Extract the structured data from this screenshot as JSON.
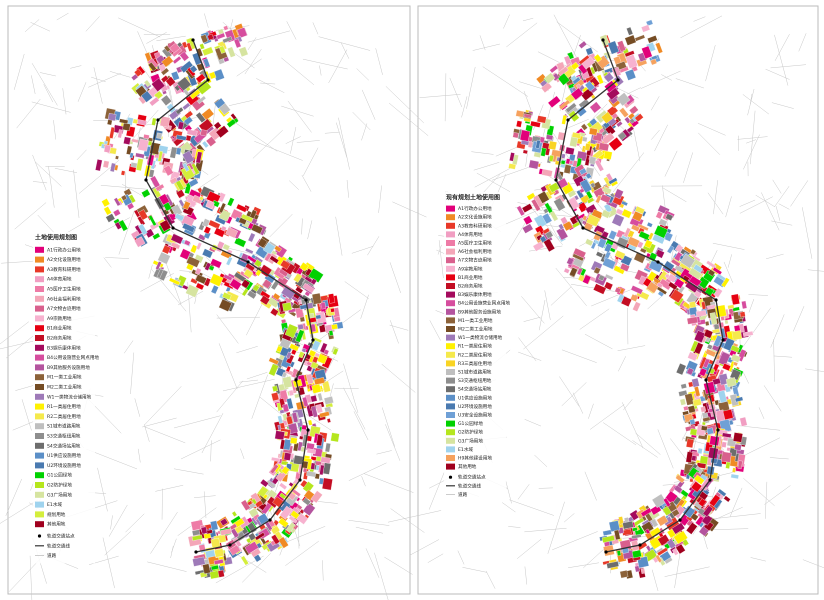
{
  "maps": [
    {
      "legend": {
        "title": "土地使用规划图",
        "items": [
          {
            "label": "A1行政办公用地",
            "color": "#e2007a"
          },
          {
            "label": "A2文化设施用地",
            "color": "#f08a24"
          },
          {
            "label": "A3教育科研用地",
            "color": "#e83828"
          },
          {
            "label": "A4体育用地",
            "color": "#f19ec2"
          },
          {
            "label": "A5医疗卫生用地",
            "color": "#ee7ba6"
          },
          {
            "label": "A6社会福利用地",
            "color": "#f4a6b8"
          },
          {
            "label": "A7文物古迹用地",
            "color": "#d9608d"
          },
          {
            "label": "A9宗教用地",
            "color": "#f7b2cf"
          },
          {
            "label": "B1商业用地",
            "color": "#e60012"
          },
          {
            "label": "B2商务用地",
            "color": "#c30d23"
          },
          {
            "label": "B3娱乐康体用地",
            "color": "#a40b5d"
          },
          {
            "label": "B4公用设施营业网点用地",
            "color": "#d64d9e"
          },
          {
            "label": "B9其他服务设施用地",
            "color": "#b4549e"
          },
          {
            "label": "M1一类工业用地",
            "color": "#8c6239"
          },
          {
            "label": "M2二类工业用地",
            "color": "#754c24"
          },
          {
            "label": "W1一类物流仓储用地",
            "color": "#9e7ab8"
          },
          {
            "label": "R1一类居住用地",
            "color": "#fff100"
          },
          {
            "label": "R2二类居住用地",
            "color": "#f5e94c"
          },
          {
            "label": "S1城市道路用地",
            "color": "#bfbfbf"
          },
          {
            "label": "S3交通枢纽用地",
            "color": "#8e8e8e"
          },
          {
            "label": "S4交通场站用地",
            "color": "#6d6d6d"
          },
          {
            "label": "U1供应设施用地",
            "color": "#5b8fc7"
          },
          {
            "label": "U2环境设施用地",
            "color": "#4a7ab0"
          },
          {
            "label": "G1公园绿地",
            "color": "#00d100"
          },
          {
            "label": "G2防护绿地",
            "color": "#b5e61d"
          },
          {
            "label": "G3广场用地",
            "color": "#d6e4a0"
          },
          {
            "label": "E1水域",
            "color": "#9fd3ee"
          },
          {
            "label": "规划用地",
            "color": "#d4ee3c"
          },
          {
            "label": "其他用地",
            "color": "#a0001e"
          }
        ],
        "station_label": "轨道交通站点",
        "line_label": "轨道交通线",
        "road_label": "道路"
      }
    },
    {
      "legend": {
        "title": "现有规划土地使用图",
        "items": [
          {
            "label": "A1行政办公用地",
            "color": "#e2007a"
          },
          {
            "label": "A2文化设施用地",
            "color": "#f08a24"
          },
          {
            "label": "A3教育科研用地",
            "color": "#e83828"
          },
          {
            "label": "A4体育用地",
            "color": "#f19ec2"
          },
          {
            "label": "A5医疗卫生用地",
            "color": "#ee7ba6"
          },
          {
            "label": "A6社会福利用地",
            "color": "#f4a6b8"
          },
          {
            "label": "A7文物古迹用地",
            "color": "#d9608d"
          },
          {
            "label": "A9宗教用地",
            "color": "#f7b2cf"
          },
          {
            "label": "B1商业用地",
            "color": "#e60012"
          },
          {
            "label": "B2商务用地",
            "color": "#c30d23"
          },
          {
            "label": "B3娱乐康体用地",
            "color": "#a40b5d"
          },
          {
            "label": "B4公用设施营业网点用地",
            "color": "#d64d9e"
          },
          {
            "label": "B9其他服务设施用地",
            "color": "#b4549e"
          },
          {
            "label": "M1一类工业用地",
            "color": "#8c6239"
          },
          {
            "label": "M2二类工业用地",
            "color": "#754c24"
          },
          {
            "label": "W1一类物流仓储用地",
            "color": "#9e7ab8"
          },
          {
            "label": "R1一类居住用地",
            "color": "#fff100"
          },
          {
            "label": "R2二类居住用地",
            "color": "#f5e94c"
          },
          {
            "label": "R3三类居住用地",
            "color": "#f9d423"
          },
          {
            "label": "S1城市道路用地",
            "color": "#bfbfbf"
          },
          {
            "label": "S3交通枢纽用地",
            "color": "#8e8e8e"
          },
          {
            "label": "S4交通场站用地",
            "color": "#6d6d6d"
          },
          {
            "label": "U1供应设施用地",
            "color": "#5b8fc7"
          },
          {
            "label": "U2环境设施用地",
            "color": "#4a7ab0"
          },
          {
            "label": "U3安全设施用地",
            "color": "#6fa0d6"
          },
          {
            "label": "G1公园绿地",
            "color": "#00d100"
          },
          {
            "label": "G2防护绿地",
            "color": "#b5e61d"
          },
          {
            "label": "G3广场用地",
            "color": "#d6e4a0"
          },
          {
            "label": "E1水域",
            "color": "#9fd3ee"
          },
          {
            "label": "H9其他建设用地",
            "color": "#f6a25e"
          },
          {
            "label": "其他用地",
            "color": "#a0001e"
          }
        ],
        "station_label": "轨道交通站点",
        "line_label": "轨道交通线",
        "road_label": "道路"
      }
    }
  ]
}
